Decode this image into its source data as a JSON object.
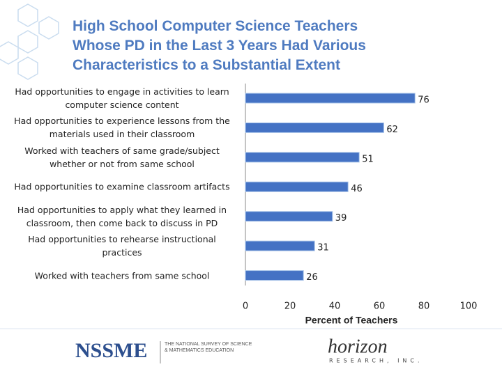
{
  "chart_data": {
    "type": "barh",
    "title": "High School Computer Science Teachers Whose PD in the Last 3 Years Had Various Characteristics to a Substantial Extent",
    "categories": [
      "Had opportunities to engage in activities to learn computer science content",
      "Had opportunities to experience lessons from the materials used in their classroom",
      "Worked with teachers of same grade/subject whether or not from same school",
      "Had opportunities to examine classroom artifacts",
      "Had opportunities to apply what they learned in classroom, then come back to discuss in PD",
      "Had opportunities to rehearse instructional practices",
      "Worked with teachers from same school"
    ],
    "values": [
      76,
      62,
      51,
      46,
      39,
      31,
      26
    ],
    "color": "#4472c4",
    "xlim": [
      0,
      100
    ],
    "xticks": [
      0,
      20,
      40,
      60,
      80,
      100
    ],
    "xlabel": "Percent of Teachers",
    "grid": false
  },
  "footer": {
    "left_logo": "NSSME",
    "left_caption": "THE NATIONAL SURVEY OF SCIENCE & MATHEMATICS EDUCATION",
    "right_logo": "horizon",
    "right_caption": "RESEARCH, INC."
  }
}
